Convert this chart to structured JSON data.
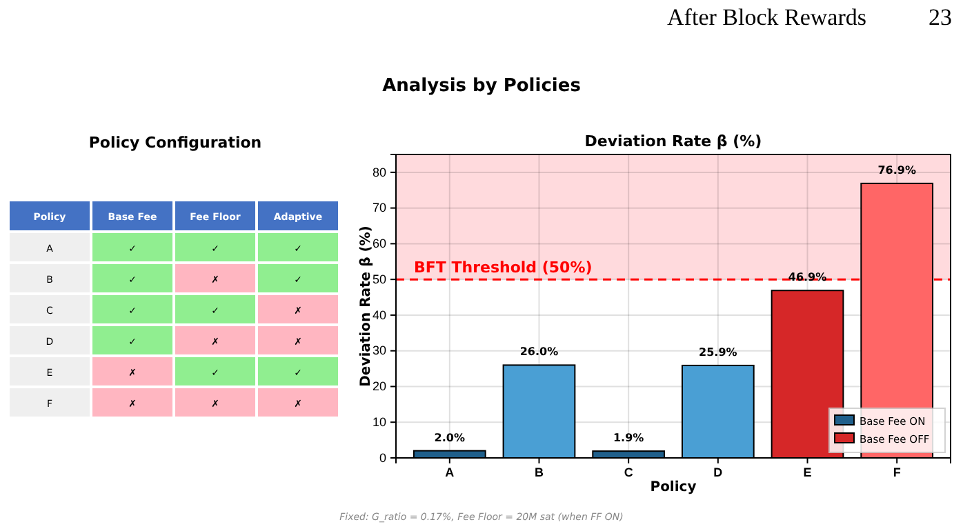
{
  "chart_data": [
    {
      "type": "other",
      "title": "Policy Configuration",
      "ylabel": "Policy",
      "categories": [
        "Base Fee",
        "Fee Floor",
        "Adaptive"
      ],
      "y_categories": [
        "A",
        "B",
        "C",
        "D",
        "E",
        "F"
      ],
      "cell_labels": [
        [
          "✓",
          "✓",
          "✓"
        ],
        [
          "✓",
          "✗",
          "✓"
        ],
        [
          "✓",
          "✓",
          "✗"
        ],
        [
          "✓",
          "✗",
          "✗"
        ],
        [
          "✗",
          "✓",
          "✓"
        ],
        [
          "✗",
          "✗",
          "✗"
        ]
      ],
      "colors": [
        [
          "#90ee90",
          "#90ee90",
          "#90ee90"
        ],
        [
          "#90ee90",
          "#ffb6c1",
          "#90ee90"
        ],
        [
          "#90ee90",
          "#90ee90",
          "#ffb6c1"
        ],
        [
          "#90ee90",
          "#ffb6c1",
          "#ffb6c1"
        ],
        [
          "#ffb6c1",
          "#90ee90",
          "#90ee90"
        ],
        [
          "#ffb6c1",
          "#ffb6c1",
          "#ffb6c1"
        ]
      ]
    },
    {
      "type": "bar",
      "title": "Deviation Rate β (%)",
      "xlabel": "Policy",
      "ylabel": "Deviation Rate β (%)",
      "categories": [
        "A",
        "B",
        "C",
        "D",
        "E",
        "F"
      ],
      "series": [
        {
          "name": "Base Fee ON",
          "color": "#1f5f8b",
          "colors": [
            "#1f5f8b",
            "#4a9fd4",
            "#1f5f8b",
            "#4a9fd4",
            null,
            null
          ],
          "values": [
            2.0,
            26.0,
            1.9,
            25.9,
            null,
            null
          ],
          "value_labels": [
            "2.0%",
            "26.0%",
            "1.9%",
            "25.9%",
            null,
            null
          ]
        },
        {
          "name": "Base Fee OFF",
          "color": "#d62728",
          "colors": [
            null,
            null,
            null,
            null,
            "#d62728",
            "#ff6666"
          ],
          "values": [
            null,
            null,
            null,
            null,
            46.9,
            76.9
          ],
          "value_labels": [
            null,
            null,
            null,
            null,
            "46.9%",
            "76.9%"
          ]
        }
      ],
      "ylim": [
        0,
        85
      ],
      "yticks": [
        0,
        10,
        20,
        30,
        40,
        50,
        60,
        70,
        80
      ],
      "grid": true,
      "legend": "bottom right",
      "ref_lines": [
        {
          "axis": "y",
          "value": 50,
          "label": "BFT Threshold (50%)",
          "color": "#ff0000",
          "line_style": "dashed"
        }
      ],
      "bands": [
        {
          "axis": "y",
          "from": 50,
          "to": 85,
          "color": "#ffd6d9"
        }
      ],
      "annotations": [
        "After Block Rewards",
        "23",
        "Analysis by Policies",
        "Fixed: G_ratio = 0.17%, Fee Floor = 20M sat (when FF ON)"
      ]
    }
  ]
}
